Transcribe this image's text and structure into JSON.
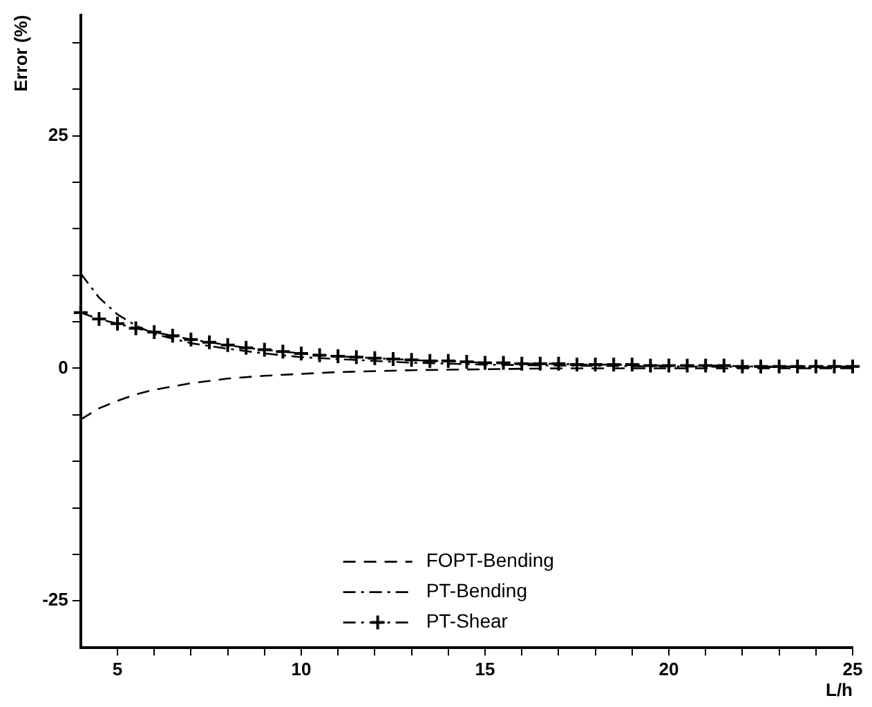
{
  "chart_data": {
    "type": "line",
    "ylabel": "Error (%)",
    "xlabel": "L/h",
    "xlim": [
      4,
      25
    ],
    "ylim": [
      -30,
      38
    ],
    "xticks": [
      5,
      {
        "value": 6,
        "label": null
      },
      {
        "value": 7,
        "label": null
      },
      {
        "value": 8,
        "label": null
      },
      {
        "value": 9,
        "label": null
      },
      10,
      {
        "value": 11,
        "label": null
      },
      {
        "value": 12,
        "label": null
      },
      {
        "value": 13,
        "label": null
      },
      {
        "value": 14,
        "label": null
      },
      15,
      {
        "value": 16,
        "label": null
      },
      {
        "value": 17,
        "label": null
      },
      {
        "value": 18,
        "label": null
      },
      {
        "value": 19,
        "label": null
      },
      20,
      {
        "value": 21,
        "label": null
      },
      {
        "value": 22,
        "label": null
      },
      {
        "value": 23,
        "label": null
      },
      {
        "value": 24,
        "label": null
      },
      25
    ],
    "yticks": [
      {
        "value": -25,
        "label": "-25"
      },
      {
        "value": -20,
        "label": null
      },
      {
        "value": -15,
        "label": null
      },
      {
        "value": -10,
        "label": null
      },
      {
        "value": -5,
        "label": null
      },
      0,
      {
        "value": 5,
        "label": null
      },
      {
        "value": 10,
        "label": null
      },
      {
        "value": 15,
        "label": null
      },
      {
        "value": 20,
        "label": null
      },
      25,
      {
        "value": 30,
        "label": null
      },
      {
        "value": 35,
        "label": null
      }
    ],
    "grid": false,
    "legend": "bottom",
    "series": [
      {
        "name": "FOPT-Bending",
        "color": "#000000",
        "line_style": "dashed",
        "marker": "none",
        "x": [
          4,
          4.5,
          5,
          5.5,
          6,
          7,
          8,
          9,
          10,
          11,
          12,
          13,
          15,
          17,
          20,
          25
        ],
        "values": [
          -5.5,
          -4.3,
          -3.5,
          -2.8,
          -2.3,
          -1.6,
          -1.1,
          -0.8,
          -0.6,
          -0.4,
          -0.3,
          -0.2,
          -0.1,
          0,
          0,
          0
        ]
      },
      {
        "name": "PT-Bending",
        "color": "#000000",
        "line_style": "dashdot",
        "marker": "none",
        "x": [
          4,
          4.5,
          5,
          5.5,
          6,
          7,
          8,
          9,
          10,
          11,
          12,
          13,
          15,
          17,
          20,
          25
        ],
        "values": [
          10.2,
          7.6,
          5.8,
          4.6,
          3.7,
          2.7,
          2.1,
          1.6,
          1.2,
          1.0,
          0.8,
          0.6,
          0.4,
          0.3,
          0.2,
          0.1
        ]
      },
      {
        "name": "PT-Shear",
        "color": "#000000",
        "line_style": "dashdot",
        "marker": "cross",
        "x": [
          4,
          4.5,
          5,
          5.5,
          6,
          6.5,
          7,
          7.5,
          8,
          8.5,
          9,
          9.5,
          10,
          10.5,
          11,
          11.5,
          12,
          12.5,
          13,
          13.5,
          14,
          14.5,
          15,
          15.5,
          16,
          16.5,
          17,
          17.5,
          18,
          18.5,
          19,
          19.5,
          20,
          20.5,
          21,
          21.5,
          22,
          22.5,
          23,
          23.5,
          24,
          24.5,
          25
        ],
        "values": [
          6.0,
          5.3,
          4.8,
          4.3,
          3.9,
          3.5,
          3.1,
          2.8,
          2.5,
          2.2,
          2.0,
          1.8,
          1.6,
          1.4,
          1.3,
          1.2,
          1.1,
          1.0,
          0.9,
          0.8,
          0.8,
          0.7,
          0.6,
          0.6,
          0.5,
          0.5,
          0.5,
          0.4,
          0.4,
          0.4,
          0.4,
          0.3,
          0.3,
          0.3,
          0.3,
          0.3,
          0.2,
          0.2,
          0.2,
          0.2,
          0.2,
          0.2,
          0.2
        ]
      }
    ]
  }
}
